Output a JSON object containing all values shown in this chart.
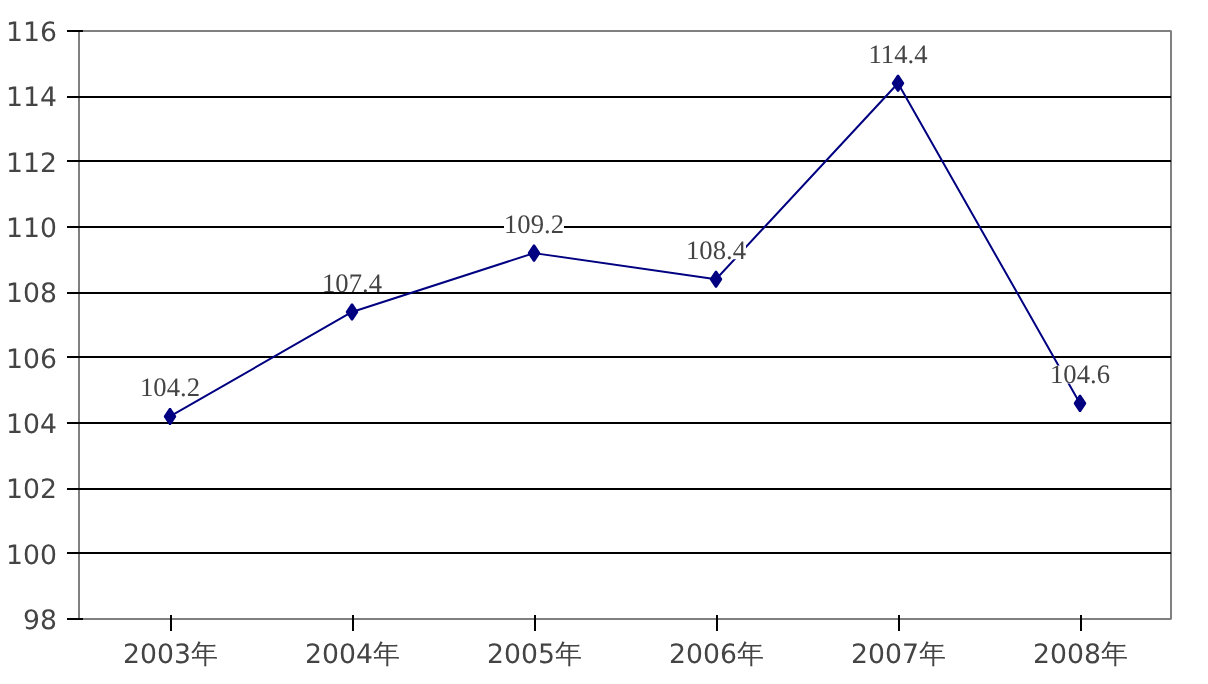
{
  "chart_data": {
    "type": "line",
    "categories": [
      "2003年",
      "2004年",
      "2005年",
      "2006年",
      "2007年",
      "2008年"
    ],
    "series": [
      {
        "color": "#000080",
        "values": [
          104.2,
          107.4,
          109.2,
          108.4,
          114.4,
          104.6
        ]
      }
    ],
    "ylim": [
      98,
      116
    ],
    "yticks": [
      98,
      100,
      102,
      104,
      106,
      108,
      110,
      112,
      114,
      116
    ],
    "grid": "y",
    "marker": "diamond",
    "line_style": "solid",
    "data_labels": true
  }
}
